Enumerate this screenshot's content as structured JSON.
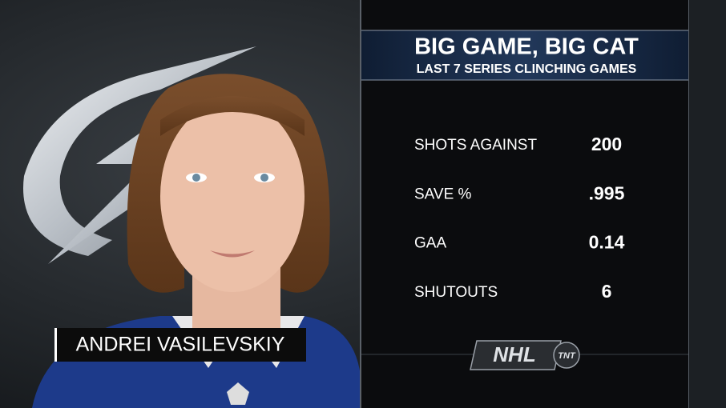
{
  "header": {
    "title": "BIG GAME, BIG CAT",
    "subtitle": "LAST 7 SERIES CLINCHING GAMES"
  },
  "player": {
    "name": "ANDREI VASILEVSKIY"
  },
  "stats": {
    "rows": [
      [
        "SHOTS AGAINST",
        "200"
      ],
      [
        "SAVE %",
        ".995"
      ],
      [
        "GAA",
        "0.14"
      ],
      [
        "SHUTOUTS",
        "6"
      ]
    ]
  },
  "logo": {
    "league": "NHL",
    "network": "TNT"
  }
}
